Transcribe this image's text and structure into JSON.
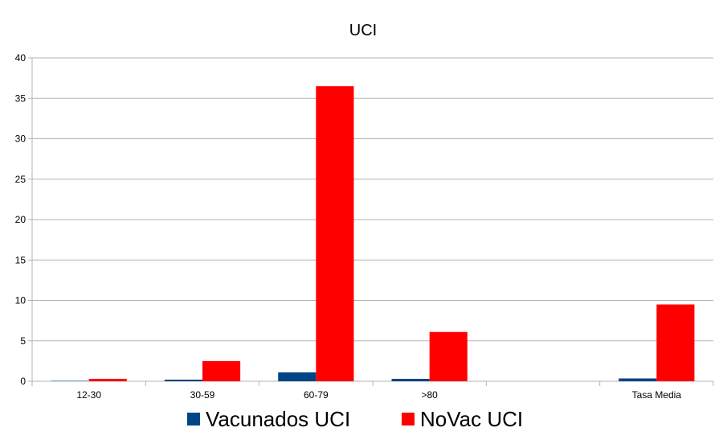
{
  "chart_data": {
    "type": "bar",
    "title": "UCI",
    "xlabel": "",
    "ylabel": "",
    "categories": [
      "12-30",
      "30-59",
      "60-79",
      ">80",
      "",
      "Tasa Media"
    ],
    "series": [
      {
        "name": "Vacunados UCI",
        "color": "#004586",
        "values": [
          0.05,
          0.2,
          1.1,
          0.3,
          null,
          0.35
        ]
      },
      {
        "name": "NoVac UCI",
        "color": "#ff0000",
        "values": [
          0.3,
          2.5,
          36.5,
          6.1,
          null,
          9.5
        ]
      }
    ],
    "ylim": [
      0,
      40
    ],
    "yticks": [
      0,
      5,
      10,
      15,
      20,
      25,
      30,
      35,
      40
    ],
    "grid": true,
    "legend_position": "bottom"
  }
}
